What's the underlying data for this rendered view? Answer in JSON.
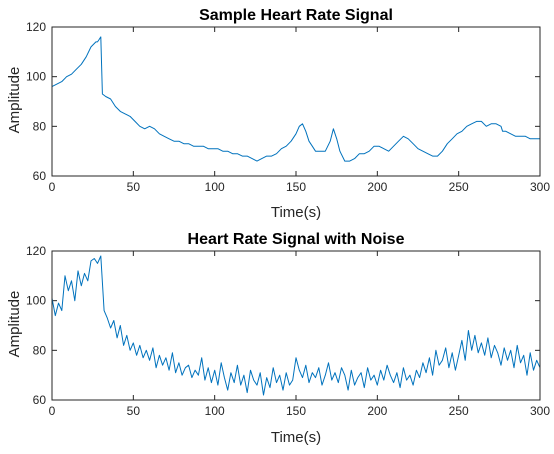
{
  "colors": {
    "series": "#0072BD",
    "axes": "#262626",
    "background": "#ffffff"
  },
  "chart_data": [
    {
      "type": "line",
      "title": "Sample Heart Rate Signal",
      "xlabel": "Time(s)",
      "ylabel": "Amplitude",
      "xlim": [
        0,
        300
      ],
      "ylim": [
        60,
        120
      ],
      "xticks": [
        "0",
        "50",
        "100",
        "150",
        "200",
        "250",
        "300"
      ],
      "yticks": [
        "60",
        "80",
        "100",
        "120"
      ],
      "grid": false,
      "series": [
        {
          "x": [
            0,
            3,
            6,
            9,
            12,
            15,
            18,
            21,
            24,
            27,
            28,
            29,
            30,
            31,
            33,
            36,
            39,
            42,
            45,
            48,
            51,
            54,
            57,
            60,
            63,
            66,
            69,
            72,
            75,
            78,
            81,
            84,
            87,
            90,
            93,
            96,
            99,
            102,
            105,
            108,
            111,
            114,
            117,
            120,
            123,
            126,
            129,
            132,
            135,
            138,
            141,
            144,
            147,
            150,
            152,
            154,
            156,
            158,
            160,
            162,
            165,
            168,
            171,
            173,
            175,
            177,
            180,
            183,
            186,
            189,
            192,
            195,
            198,
            201,
            204,
            207,
            210,
            213,
            216,
            219,
            222,
            225,
            228,
            231,
            234,
            237,
            240,
            243,
            246,
            249,
            252,
            255,
            258,
            261,
            264,
            267,
            270,
            273,
            276,
            277,
            279,
            282,
            285,
            288,
            291,
            294,
            297,
            300
          ],
          "y": [
            96,
            97,
            98,
            100,
            101,
            103,
            105,
            108,
            112,
            114,
            114,
            115,
            116,
            93,
            92,
            91,
            88,
            86,
            85,
            84,
            82,
            80,
            79,
            80,
            79,
            77,
            76,
            75,
            74,
            74,
            73,
            73,
            72,
            72,
            72,
            71,
            71,
            71,
            70,
            70,
            69,
            69,
            68,
            68,
            67,
            66,
            67,
            68,
            68,
            69,
            71,
            72,
            74,
            77,
            80,
            81,
            78,
            74,
            72,
            70,
            70,
            70,
            74,
            79,
            75,
            70,
            66,
            66,
            67,
            69,
            69,
            70,
            72,
            72,
            71,
            70,
            72,
            74,
            76,
            75,
            73,
            71,
            70,
            69,
            68,
            68,
            70,
            73,
            75,
            77,
            78,
            80,
            81,
            82,
            82,
            80,
            81,
            81,
            80,
            78,
            78,
            77,
            76,
            76,
            76,
            75,
            75,
            75
          ]
        }
      ]
    },
    {
      "type": "line",
      "title": "Heart Rate Signal with Noise",
      "xlabel": "Time(s)",
      "ylabel": "Amplitude",
      "xlim": [
        0,
        300
      ],
      "ylim": [
        60,
        120
      ],
      "xticks": [
        "0",
        "50",
        "100",
        "150",
        "200",
        "250",
        "300"
      ],
      "yticks": [
        "60",
        "80",
        "100",
        "120"
      ],
      "grid": false,
      "series": [
        {
          "x": [
            0,
            2,
            4,
            6,
            8,
            10,
            12,
            14,
            16,
            18,
            20,
            22,
            24,
            26,
            28,
            30,
            32,
            34,
            36,
            38,
            40,
            42,
            44,
            46,
            48,
            50,
            52,
            54,
            56,
            58,
            60,
            62,
            64,
            66,
            68,
            70,
            72,
            74,
            76,
            78,
            80,
            82,
            84,
            86,
            88,
            90,
            92,
            94,
            96,
            98,
            100,
            102,
            104,
            106,
            108,
            110,
            112,
            114,
            116,
            118,
            120,
            122,
            124,
            126,
            128,
            130,
            132,
            134,
            136,
            138,
            140,
            142,
            144,
            146,
            148,
            150,
            152,
            154,
            156,
            158,
            160,
            162,
            164,
            166,
            168,
            170,
            172,
            174,
            176,
            178,
            180,
            182,
            184,
            186,
            188,
            190,
            192,
            194,
            196,
            198,
            200,
            202,
            204,
            206,
            208,
            210,
            212,
            214,
            216,
            218,
            220,
            222,
            224,
            226,
            228,
            230,
            232,
            234,
            236,
            238,
            240,
            242,
            244,
            246,
            248,
            250,
            252,
            254,
            256,
            258,
            260,
            262,
            264,
            266,
            268,
            270,
            272,
            274,
            276,
            278,
            280,
            282,
            284,
            286,
            288,
            290,
            292,
            294,
            296,
            298,
            300
          ],
          "y": [
            101,
            94,
            99,
            96,
            110,
            104,
            108,
            100,
            112,
            106,
            111,
            108,
            116,
            117,
            115,
            118,
            96,
            93,
            89,
            92,
            85,
            90,
            82,
            86,
            80,
            83,
            78,
            82,
            77,
            80,
            76,
            81,
            73,
            78,
            74,
            77,
            72,
            79,
            71,
            75,
            70,
            73,
            74,
            69,
            72,
            70,
            77,
            68,
            73,
            67,
            72,
            66,
            75,
            69,
            64,
            71,
            67,
            74,
            66,
            70,
            63,
            72,
            68,
            66,
            71,
            62,
            69,
            65,
            73,
            67,
            70,
            64,
            71,
            66,
            68,
            77,
            72,
            69,
            74,
            67,
            71,
            69,
            73,
            66,
            70,
            75,
            68,
            71,
            67,
            73,
            70,
            64,
            72,
            66,
            69,
            71,
            65,
            73,
            68,
            70,
            66,
            72,
            68,
            74,
            70,
            67,
            71,
            65,
            73,
            68,
            70,
            66,
            72,
            69,
            75,
            71,
            77,
            70,
            80,
            74,
            76,
            81,
            73,
            79,
            72,
            78,
            84,
            76,
            88,
            80,
            86,
            79,
            83,
            78,
            85,
            77,
            82,
            79,
            74,
            81,
            76,
            80,
            73,
            82,
            75,
            78,
            70,
            79,
            72,
            76,
            73
          ]
        }
      ]
    }
  ]
}
